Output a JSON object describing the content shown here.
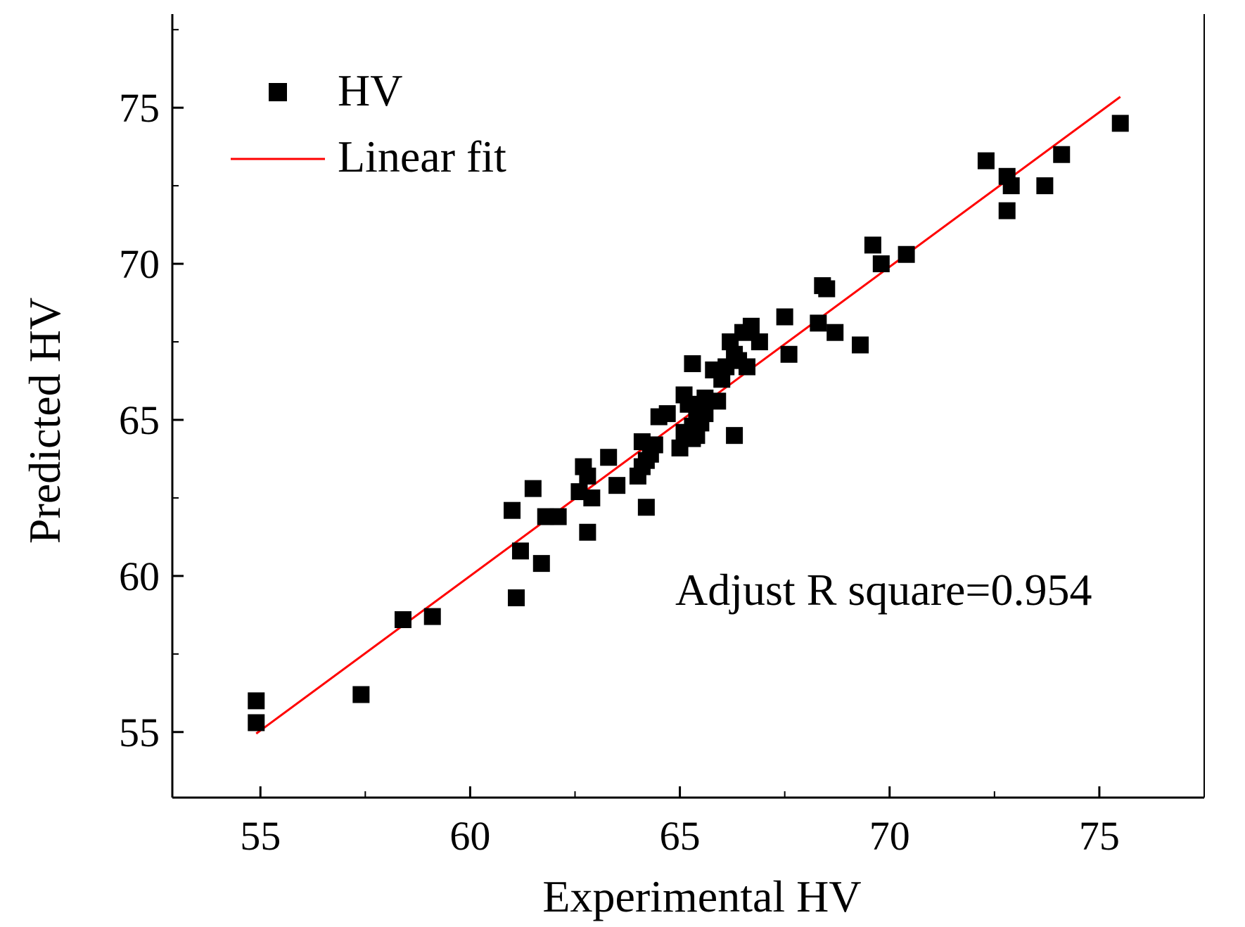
{
  "chart_data": {
    "type": "scatter",
    "title": "",
    "xlabel": "Experimental HV",
    "ylabel": "Predicted HV",
    "xlim": [
      52.9,
      77.5
    ],
    "ylim": [
      52.9,
      78.0
    ],
    "xticks": [
      55,
      60,
      65,
      70,
      75
    ],
    "yticks": [
      55,
      60,
      65,
      70,
      75
    ],
    "grid": false,
    "legend_position": "top-left",
    "annotation": "Adjust R square=0.954",
    "series": [
      {
        "name": "HV",
        "kind": "points",
        "color": "#000000",
        "points": [
          [
            54.9,
            56.0
          ],
          [
            54.9,
            55.3
          ],
          [
            57.4,
            56.2
          ],
          [
            58.4,
            58.6
          ],
          [
            59.1,
            58.7
          ],
          [
            61.0,
            62.1
          ],
          [
            61.1,
            59.3
          ],
          [
            61.2,
            60.8
          ],
          [
            61.5,
            62.8
          ],
          [
            61.7,
            60.4
          ],
          [
            61.8,
            61.9
          ],
          [
            62.1,
            61.9
          ],
          [
            62.6,
            62.7
          ],
          [
            62.7,
            63.5
          ],
          [
            62.8,
            63.2
          ],
          [
            62.8,
            61.4
          ],
          [
            62.9,
            62.5
          ],
          [
            63.3,
            63.8
          ],
          [
            63.5,
            62.9
          ],
          [
            64.0,
            63.2
          ],
          [
            64.1,
            63.5
          ],
          [
            64.1,
            64.3
          ],
          [
            64.2,
            62.2
          ],
          [
            64.2,
            63.7
          ],
          [
            64.3,
            63.9
          ],
          [
            64.4,
            64.2
          ],
          [
            64.5,
            65.1
          ],
          [
            64.7,
            65.2
          ],
          [
            65.0,
            64.1
          ],
          [
            65.1,
            64.6
          ],
          [
            65.1,
            65.8
          ],
          [
            65.2,
            65.5
          ],
          [
            65.3,
            64.4
          ],
          [
            65.3,
            64.8
          ],
          [
            65.3,
            66.8
          ],
          [
            65.4,
            64.5
          ],
          [
            65.4,
            65.3
          ],
          [
            65.5,
            64.9
          ],
          [
            65.6,
            65.7
          ],
          [
            65.6,
            65.2
          ],
          [
            65.8,
            66.6
          ],
          [
            65.9,
            65.6
          ],
          [
            66.0,
            66.3
          ],
          [
            66.1,
            66.7
          ],
          [
            66.2,
            67.5
          ],
          [
            66.3,
            64.5
          ],
          [
            66.3,
            67.1
          ],
          [
            66.4,
            66.9
          ],
          [
            66.5,
            67.8
          ],
          [
            66.6,
            66.7
          ],
          [
            66.7,
            68.0
          ],
          [
            66.9,
            67.5
          ],
          [
            67.5,
            68.3
          ],
          [
            67.6,
            67.1
          ],
          [
            68.3,
            68.1
          ],
          [
            68.4,
            69.3
          ],
          [
            68.5,
            69.2
          ],
          [
            68.7,
            67.8
          ],
          [
            69.3,
            67.4
          ],
          [
            69.6,
            70.6
          ],
          [
            69.8,
            70.0
          ],
          [
            70.4,
            70.3
          ],
          [
            72.3,
            73.3
          ],
          [
            72.8,
            72.8
          ],
          [
            72.8,
            71.7
          ],
          [
            72.9,
            72.5
          ],
          [
            73.7,
            72.5
          ],
          [
            74.1,
            73.5
          ],
          [
            75.5,
            74.5
          ]
        ]
      },
      {
        "name": "Linear fit",
        "kind": "line",
        "color": "#ff0000",
        "x": [
          54.9,
          75.5
        ],
        "y": [
          54.95,
          75.35
        ]
      }
    ]
  }
}
